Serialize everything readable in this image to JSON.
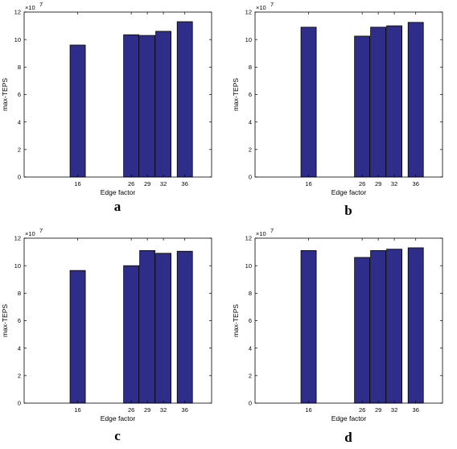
{
  "chart_data": [
    {
      "type": "bar",
      "panel_label": "a",
      "categories": [
        "16",
        "26",
        "29",
        "32",
        "36"
      ],
      "x": [
        16,
        26,
        29,
        32,
        36
      ],
      "values": [
        96000000,
        103500000,
        103000000,
        106000000,
        113000000
      ],
      "xlabel": "Edge factor",
      "ylabel": "max-TEPS",
      "ylim": [
        0,
        120000000
      ],
      "xlim": [
        6,
        41
      ],
      "yticks": [
        "0",
        "2",
        "4",
        "6",
        "8",
        "10",
        "12"
      ],
      "exponent_label": {
        "base": "×10",
        "power": "7"
      },
      "bar_color": "#2e2e8a",
      "grid": false
    },
    {
      "type": "bar",
      "panel_label": "b",
      "categories": [
        "16",
        "26",
        "29",
        "32",
        "36"
      ],
      "x": [
        16,
        26,
        29,
        32,
        36
      ],
      "values": [
        109000000,
        102500000,
        109000000,
        110000000,
        112500000
      ],
      "xlabel": "Edge factor",
      "ylabel": "max-TEPS",
      "ylim": [
        0,
        120000000
      ],
      "xlim": [
        6,
        41
      ],
      "yticks": [
        "0",
        "2",
        "4",
        "6",
        "8",
        "10",
        "12"
      ],
      "exponent_label": {
        "base": "×10",
        "power": "7"
      },
      "bar_color": "#2e2e8a",
      "grid": false
    },
    {
      "type": "bar",
      "panel_label": "c",
      "categories": [
        "16",
        "26",
        "29",
        "32",
        "36"
      ],
      "x": [
        16,
        26,
        29,
        32,
        36
      ],
      "values": [
        96500000,
        100000000,
        111000000,
        109000000,
        110500000
      ],
      "xlabel": "Edge factor",
      "ylabel": "max-TEPS",
      "ylim": [
        0,
        120000000
      ],
      "xlim": [
        6,
        41
      ],
      "yticks": [
        "0",
        "2",
        "4",
        "6",
        "8",
        "10",
        "12"
      ],
      "exponent_label": {
        "base": "×10",
        "power": "7"
      },
      "bar_color": "#2e2e8a",
      "grid": false
    },
    {
      "type": "bar",
      "panel_label": "d",
      "categories": [
        "16",
        "26",
        "29",
        "32",
        "36"
      ],
      "x": [
        16,
        26,
        29,
        32,
        36
      ],
      "values": [
        111000000,
        106000000,
        111000000,
        112000000,
        113000000
      ],
      "xlabel": "Edge factor",
      "ylabel": "max-TEPS",
      "ylim": [
        0,
        120000000
      ],
      "xlim": [
        6,
        41
      ],
      "yticks": [
        "0",
        "2",
        "4",
        "6",
        "8",
        "10",
        "12"
      ],
      "exponent_label": {
        "base": "×10",
        "power": "7"
      },
      "bar_color": "#2e2e8a",
      "grid": false
    }
  ]
}
